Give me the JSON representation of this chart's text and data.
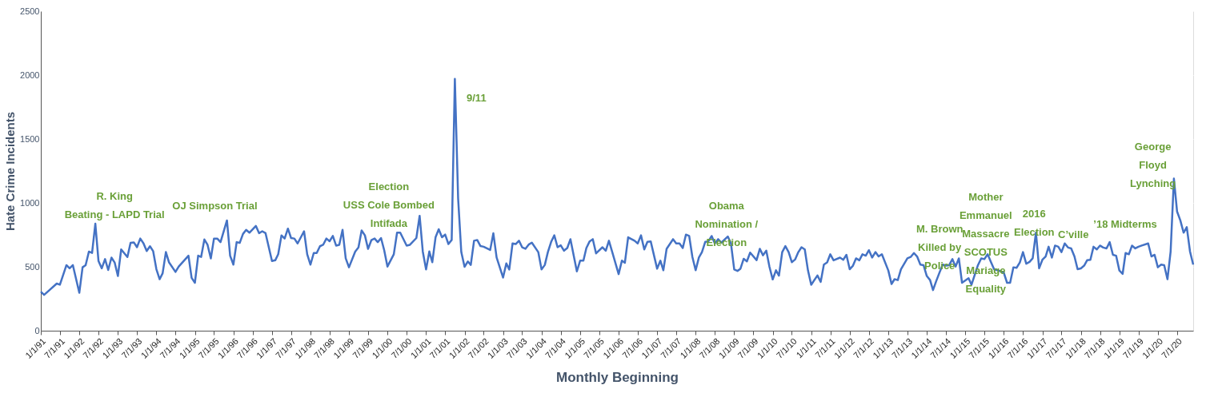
{
  "chart_data": {
    "type": "line",
    "xlabel": "Monthly Beginning",
    "ylabel": "Hate Crime Incidents",
    "x": [
      "1991-01",
      "1991-02",
      "1991-03",
      "1991-06",
      "1991-07",
      "1991-09",
      "1991-10",
      "1991-11",
      "1992-01",
      "1992-02",
      "1992-03",
      "1992-04",
      "1992-05",
      "1992-06",
      "1992-07",
      "1992-08",
      "1992-09",
      "1992-10",
      "1992-11",
      "1992-12",
      "1993-01",
      "1993-02",
      "1993-04",
      "1993-05",
      "1993-06",
      "1993-07",
      "1993-08",
      "1993-09",
      "1993-10",
      "1993-11",
      "1993-12",
      "1994-01",
      "1994-02",
      "1994-03",
      "1994-04",
      "1994-05",
      "1994-07",
      "1994-08",
      "1994-11",
      "1994-12",
      "1995-01",
      "1995-02",
      "1995-03",
      "1995-04",
      "1995-05",
      "1995-06",
      "1995-07",
      "1995-08",
      "1995-09",
      "1995-11",
      "1995-12",
      "1996-01",
      "1996-02",
      "1996-03",
      "1996-04",
      "1996-05",
      "1996-06",
      "1996-08",
      "1996-09",
      "1996-10",
      "1996-11",
      "1997-01",
      "1997-02",
      "1997-03",
      "1997-04",
      "1997-05",
      "1997-06",
      "1997-07",
      "1997-08",
      "1997-09",
      "1997-11",
      "1997-12",
      "1998-01",
      "1998-02",
      "1998-03",
      "1998-04",
      "1998-05",
      "1998-06",
      "1998-07",
      "1998-08",
      "1998-09",
      "1998-10",
      "1998-11",
      "1998-12",
      "1999-01",
      "1999-03",
      "1999-04",
      "1999-05",
      "1999-06",
      "1999-07",
      "1999-08",
      "1999-09",
      "1999-10",
      "1999-11",
      "1999-12",
      "2000-01",
      "2000-03",
      "2000-04",
      "2000-05",
      "2000-07",
      "2000-08",
      "2000-10",
      "2000-11",
      "2000-12",
      "2001-01",
      "2001-02",
      "2001-03",
      "2001-04",
      "2001-05",
      "2001-06",
      "2001-07",
      "2001-08",
      "2001-09",
      "2001-10",
      "2001-11",
      "2001-12",
      "2002-01",
      "2002-02",
      "2002-03",
      "2002-04",
      "2002-05",
      "2002-06",
      "2002-07",
      "2002-09",
      "2002-10",
      "2002-11",
      "2003-01",
      "2003-02",
      "2003-03",
      "2003-04",
      "2003-05",
      "2003-06",
      "2003-07",
      "2003-08",
      "2003-09",
      "2003-10",
      "2003-12",
      "2004-01",
      "2004-02",
      "2004-03",
      "2004-04",
      "2004-05",
      "2004-06",
      "2004-07",
      "2004-08",
      "2004-09",
      "2004-10",
      "2004-12",
      "2005-01",
      "2005-02",
      "2005-03",
      "2005-04",
      "2005-05",
      "2005-06",
      "2005-08",
      "2005-09",
      "2005-10",
      "2006-01",
      "2006-02",
      "2006-03",
      "2006-04",
      "2006-06",
      "2006-07",
      "2006-08",
      "2006-09",
      "2006-10",
      "2006-11",
      "2007-01",
      "2007-02",
      "2007-03",
      "2007-04",
      "2007-06",
      "2007-07",
      "2007-08",
      "2007-09",
      "2007-10",
      "2007-11",
      "2007-12",
      "2008-01",
      "2008-02",
      "2008-03",
      "2008-04",
      "2008-05",
      "2008-06",
      "2008-07",
      "2008-08",
      "2008-09",
      "2008-11",
      "2008-12",
      "2009-01",
      "2009-02",
      "2009-03",
      "2009-04",
      "2009-05",
      "2009-06",
      "2009-08",
      "2009-09",
      "2009-10",
      "2009-11",
      "2009-12",
      "2010-01",
      "2010-02",
      "2010-03",
      "2010-04",
      "2010-05",
      "2010-06",
      "2010-07",
      "2010-08",
      "2010-09",
      "2010-10",
      "2010-11",
      "2010-12",
      "2011-01",
      "2011-03",
      "2011-04",
      "2011-05",
      "2011-06",
      "2011-07",
      "2011-08",
      "2011-10",
      "2011-11",
      "2011-12",
      "2012-01",
      "2012-02",
      "2012-03",
      "2012-04",
      "2012-05",
      "2012-06",
      "2012-07",
      "2012-08",
      "2012-09",
      "2012-10",
      "2012-11",
      "2013-01",
      "2013-02",
      "2013-03",
      "2013-04",
      "2013-05",
      "2013-07",
      "2013-08",
      "2013-09",
      "2013-10",
      "2013-11",
      "2013-12",
      "2014-01",
      "2014-02",
      "2014-03",
      "2014-04",
      "2014-05",
      "2014-06",
      "2014-07",
      "2014-08",
      "2014-09",
      "2014-10",
      "2014-11",
      "2014-12",
      "2015-02",
      "2015-03",
      "2015-05",
      "2015-06",
      "2015-07",
      "2015-08",
      "2015-09",
      "2015-10",
      "2015-12",
      "2016-01",
      "2016-02",
      "2016-03",
      "2016-04",
      "2016-05",
      "2016-06",
      "2016-07",
      "2016-08",
      "2016-09",
      "2016-10",
      "2016-11",
      "2016-12",
      "2017-01",
      "2017-02",
      "2017-03",
      "2017-04",
      "2017-05",
      "2017-06",
      "2017-07",
      "2017-08",
      "2017-09",
      "2017-10",
      "2017-11",
      "2017-12",
      "2018-01",
      "2018-02",
      "2018-03",
      "2018-04",
      "2018-05",
      "2018-06",
      "2018-07",
      "2018-08",
      "2018-09",
      "2018-10",
      "2018-11",
      "2018-12",
      "2019-01",
      "2019-02",
      "2019-03",
      "2019-04",
      "2019-05",
      "2019-06",
      "2019-07",
      "2019-08",
      "2019-10",
      "2019-11",
      "2019-12",
      "2020-01",
      "2020-02",
      "2020-03",
      "2020-04",
      "2020-05",
      "2020-06",
      "2020-07",
      "2020-08",
      "2020-09",
      "2020-10",
      "2020-11",
      "2020-12"
    ],
    "series": [
      {
        "color": "#4472c4",
        "values": [
          305,
          280,
          301,
          369,
          360,
          513,
          488,
          513,
          297,
          496,
          513,
          619,
          608,
          837,
          545,
          488,
          560,
          475,
          572,
          534,
          428,
          636,
          577,
          687,
          691,
          653,
          721,
          683,
          623,
          661,
          623,
          481,
          403,
          449,
          615,
          534,
          460,
          502,
          587,
          413,
          375,
          587,
          577,
          714,
          672,
          566,
          721,
          721,
          693,
          863,
          587,
          517,
          693,
          687,
          757,
          789,
          767,
          820,
          763,
          778,
          763,
          545,
          551,
          598,
          746,
          721,
          799,
          725,
          721,
          683,
          778,
          598,
          517,
          608,
          608,
          661,
          672,
          721,
          700,
          742,
          666,
          672,
          789,
          566,
          496,
          619,
          651,
          784,
          746,
          640,
          708,
          721,
          693,
          725,
          630,
          502,
          598,
          767,
          767,
          666,
          672,
          725,
          899,
          619,
          479,
          620,
          536,
          731,
          794,
          731,
          752,
          678,
          710,
          1970,
          1035,
          615,
          500,
          542,
          515,
          704,
          710,
          662,
          657,
          632,
          762,
          573,
          416,
          527,
          479,
          683,
          678,
          704,
          653,
          641,
          674,
          689,
          615,
          479,
          515,
          615,
          695,
          746,
          653,
          668,
          626,
          647,
          716,
          464,
          548,
          548,
          647,
          699,
          716,
          605,
          653,
          626,
          704,
          443,
          548,
          531,
          731,
          704,
          683,
          746,
          636,
          695,
          699,
          485,
          548,
          473,
          641,
          716,
          683,
          683,
          647,
          752,
          741,
          578,
          473,
          573,
          615,
          695,
          699,
          741,
          683,
          716,
          689,
          737,
          683,
          479,
          468,
          485,
          563,
          542,
          611,
          552,
          641,
          590,
          626,
          500,
          401,
          473,
          431,
          615,
          662,
          615,
          536,
          557,
          615,
          653,
          636,
          473,
          359,
          432,
          382,
          517,
          534,
          598,
          551,
          572,
          555,
          594,
          481,
          509,
          566,
          551,
          598,
          587,
          630,
          572,
          615,
          581,
          598,
          471,
          365,
          403,
          396,
          481,
          566,
          577,
          608,
          581,
          517,
          513,
          428,
          396,
          318,
          390,
          454,
          517,
          509,
          513,
          560,
          502,
          566,
          375,
          411,
          360,
          513,
          566,
          560,
          598,
          538,
          481,
          466,
          454,
          375,
          375,
          496,
          492,
          534,
          615,
          524,
          538,
          566,
          767,
          488,
          555,
          581,
          657,
          572,
          666,
          657,
          615,
          683,
          651,
          644,
          581,
          481,
          488,
          509,
          551,
          555,
          657,
          636,
          666,
          651,
          644,
          693,
          594,
          587,
          471,
          445,
          608,
          598,
          666,
          644,
          657,
          666,
          683,
          581,
          594,
          496,
          517,
          513,
          403,
          619,
          1190,
          933,
          863,
          767,
          810,
          619,
          517
        ]
      }
    ],
    "xlim": [
      "1991-01",
      "2020-12"
    ],
    "xticks": [
      {
        "value": "1991-01",
        "label": "1/1/91"
      },
      {
        "value": "1991-07",
        "label": "7/1/91"
      },
      {
        "value": "1992-01",
        "label": "1/1/92"
      },
      {
        "value": "1992-07",
        "label": "7/1/92"
      },
      {
        "value": "1993-01",
        "label": "1/1/93"
      },
      {
        "value": "1993-07",
        "label": "7/1/93"
      },
      {
        "value": "1994-01",
        "label": "1/1/94"
      },
      {
        "value": "1994-07",
        "label": "7/1/94"
      },
      {
        "value": "1995-01",
        "label": "1/1/95"
      },
      {
        "value": "1995-07",
        "label": "7/1/95"
      },
      {
        "value": "1996-01",
        "label": "1/1/96"
      },
      {
        "value": "1996-07",
        "label": "7/1/96"
      },
      {
        "value": "1997-01",
        "label": "1/1/97"
      },
      {
        "value": "1997-07",
        "label": "7/1/97"
      },
      {
        "value": "1998-01",
        "label": "1/1/98"
      },
      {
        "value": "1998-07",
        "label": "7/1/98"
      },
      {
        "value": "1999-01",
        "label": "1/1/99"
      },
      {
        "value": "1999-07",
        "label": "7/1/99"
      },
      {
        "value": "2000-01",
        "label": "1/1/00"
      },
      {
        "value": "2000-07",
        "label": "7/1/00"
      },
      {
        "value": "2001-01",
        "label": "1/1/01"
      },
      {
        "value": "2001-07",
        "label": "7/1/01"
      },
      {
        "value": "2002-01",
        "label": "1/1/02"
      },
      {
        "value": "2002-07",
        "label": "7/1/02"
      },
      {
        "value": "2003-01",
        "label": "1/1/03"
      },
      {
        "value": "2003-07",
        "label": "7/1/03"
      },
      {
        "value": "2004-01",
        "label": "1/1/04"
      },
      {
        "value": "2004-07",
        "label": "7/1/04"
      },
      {
        "value": "2005-01",
        "label": "1/1/05"
      },
      {
        "value": "2005-07",
        "label": "7/1/05"
      },
      {
        "value": "2006-01",
        "label": "1/1/06"
      },
      {
        "value": "2006-07",
        "label": "7/1/06"
      },
      {
        "value": "2007-01",
        "label": "1/1/07"
      },
      {
        "value": "2007-07",
        "label": "7/1/07"
      },
      {
        "value": "2008-01",
        "label": "1/1/08"
      },
      {
        "value": "2008-07",
        "label": "7/1/08"
      },
      {
        "value": "2009-01",
        "label": "1/1/09"
      },
      {
        "value": "2009-07",
        "label": "7/1/09"
      },
      {
        "value": "2010-01",
        "label": "1/1/10"
      },
      {
        "value": "2010-07",
        "label": "7/1/10"
      },
      {
        "value": "2011-01",
        "label": "1/1/11"
      },
      {
        "value": "2011-07",
        "label": "7/1/11"
      },
      {
        "value": "2012-01",
        "label": "1/1/12"
      },
      {
        "value": "2012-07",
        "label": "7/1/12"
      },
      {
        "value": "2013-01",
        "label": "1/1/13"
      },
      {
        "value": "2013-07",
        "label": "7/1/13"
      },
      {
        "value": "2014-01",
        "label": "1/1/14"
      },
      {
        "value": "2014-07",
        "label": "7/1/14"
      },
      {
        "value": "2015-01",
        "label": "1/1/15"
      },
      {
        "value": "2015-07",
        "label": "7/1/15"
      },
      {
        "value": "2016-01",
        "label": "1/1/16"
      },
      {
        "value": "2016-07",
        "label": "7/1/16"
      },
      {
        "value": "2017-01",
        "label": "1/1/17"
      },
      {
        "value": "2017-07",
        "label": "7/1/17"
      },
      {
        "value": "2018-01",
        "label": "1/1/18"
      },
      {
        "value": "2018-07",
        "label": "7/1/18"
      },
      {
        "value": "2019-01",
        "label": "1/1/19"
      },
      {
        "value": "2019-07",
        "label": "7/1/19"
      },
      {
        "value": "2020-01",
        "label": "1/1/20"
      },
      {
        "value": "2020-07",
        "label": "7/1/20"
      }
    ],
    "ylim": [
      0,
      2500
    ],
    "yticks": [
      0,
      500,
      1000,
      1500,
      2000,
      2500
    ],
    "grid": "y",
    "line_style": "solid",
    "marker": "none",
    "annotations": [
      "R. King\nBeating - LAPD Trial",
      "OJ Simpson Trial",
      "Election\nUSS Cole Bombed\nIntifada",
      "9/11",
      "Obama\nNomination /\nElection",
      "M. Brown\nKilled by\nPolice",
      "Mother\nEmmanuel\nMassacre\nSCOTUS\nMariage\nEquality",
      "2016\nElection",
      "C’ville",
      "’18 Midterms",
      "George\nFloyd\nLynching"
    ]
  }
}
